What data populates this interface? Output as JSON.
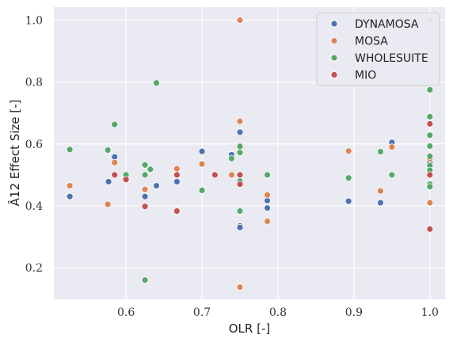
{
  "chart_data": {
    "type": "scatter",
    "xlabel": "OLR [-]",
    "ylabel": "Â12 Effect Size [-]",
    "xlim": [
      0.505,
      1.02
    ],
    "ylim": [
      0.098,
      1.042
    ],
    "xticks": [
      0.6,
      0.7,
      0.8,
      0.9,
      1.0
    ],
    "xtick_labels": [
      "0.6",
      "0.7",
      "0.8",
      "0.9",
      "1.0"
    ],
    "yticks": [
      0.2,
      0.4,
      0.6,
      0.8,
      1.0
    ],
    "ytick_labels": [
      "0.2",
      "0.4",
      "0.6",
      "0.8",
      "1.0"
    ],
    "grid": true,
    "background": "#eaeaf2",
    "legend_position": "top-right",
    "series": [
      {
        "name": "DYNAMOSA",
        "color": "#4c72b0",
        "points": [
          [
            0.526,
            0.43
          ],
          [
            0.577,
            0.478
          ],
          [
            0.585,
            0.558
          ],
          [
            0.625,
            0.43
          ],
          [
            0.64,
            0.465
          ],
          [
            0.667,
            0.478
          ],
          [
            0.7,
            0.576
          ],
          [
            0.739,
            0.565
          ],
          [
            0.75,
            0.638
          ],
          [
            0.75,
            0.335
          ],
          [
            0.75,
            0.33
          ],
          [
            0.786,
            0.417
          ],
          [
            0.786,
            0.393
          ],
          [
            0.893,
            0.415
          ],
          [
            0.935,
            0.41
          ],
          [
            0.95,
            0.605
          ],
          [
            1.0,
            0.54
          ],
          [
            1.0,
            0.53
          ],
          [
            1.0,
            0.52
          ]
        ]
      },
      {
        "name": "MOSA",
        "color": "#dd8452",
        "points": [
          [
            0.526,
            0.465
          ],
          [
            0.576,
            0.405
          ],
          [
            0.585,
            0.54
          ],
          [
            0.625,
            0.453
          ],
          [
            0.667,
            0.52
          ],
          [
            0.7,
            0.535
          ],
          [
            0.739,
            0.5
          ],
          [
            0.75,
            1.0
          ],
          [
            0.75,
            0.673
          ],
          [
            0.75,
            0.478
          ],
          [
            0.75,
            0.137
          ],
          [
            0.786,
            0.435
          ],
          [
            0.786,
            0.35
          ],
          [
            0.893,
            0.577
          ],
          [
            0.935,
            0.448
          ],
          [
            0.95,
            0.59
          ],
          [
            1.0,
            0.553
          ],
          [
            1.0,
            0.502
          ],
          [
            1.0,
            0.41
          ]
        ]
      },
      {
        "name": "WHOLESUITE",
        "color": "#55a868",
        "points": [
          [
            0.526,
            0.582
          ],
          [
            0.576,
            0.58
          ],
          [
            0.585,
            0.663
          ],
          [
            0.6,
            0.5
          ],
          [
            0.625,
            0.532
          ],
          [
            0.625,
            0.5
          ],
          [
            0.625,
            0.16
          ],
          [
            0.632,
            0.518
          ],
          [
            0.64,
            0.797
          ],
          [
            0.667,
            0.5
          ],
          [
            0.7,
            0.45
          ],
          [
            0.739,
            0.553
          ],
          [
            0.75,
            0.592
          ],
          [
            0.75,
            0.572
          ],
          [
            0.75,
            0.48
          ],
          [
            0.75,
            0.383
          ],
          [
            0.786,
            0.5
          ],
          [
            0.893,
            0.49
          ],
          [
            0.935,
            0.575
          ],
          [
            0.95,
            0.5
          ],
          [
            1.0,
            0.775
          ],
          [
            1.0,
            0.688
          ],
          [
            1.0,
            0.628
          ],
          [
            1.0,
            0.593
          ],
          [
            1.0,
            0.56
          ],
          [
            1.0,
            0.53
          ],
          [
            1.0,
            0.515
          ],
          [
            1.0,
            0.498
          ],
          [
            1.0,
            0.47
          ],
          [
            1.0,
            0.462
          ]
        ]
      },
      {
        "name": "MIO",
        "color": "#c44e52",
        "points": [
          [
            0.585,
            0.5
          ],
          [
            0.6,
            0.485
          ],
          [
            0.625,
            0.398
          ],
          [
            0.667,
            0.5
          ],
          [
            0.667,
            0.383
          ],
          [
            0.717,
            0.5
          ],
          [
            0.75,
            0.5
          ],
          [
            0.75,
            0.47
          ],
          [
            1.0,
            1.0
          ],
          [
            1.0,
            0.665
          ],
          [
            1.0,
            0.5
          ],
          [
            1.0,
            0.325
          ]
        ]
      }
    ]
  }
}
